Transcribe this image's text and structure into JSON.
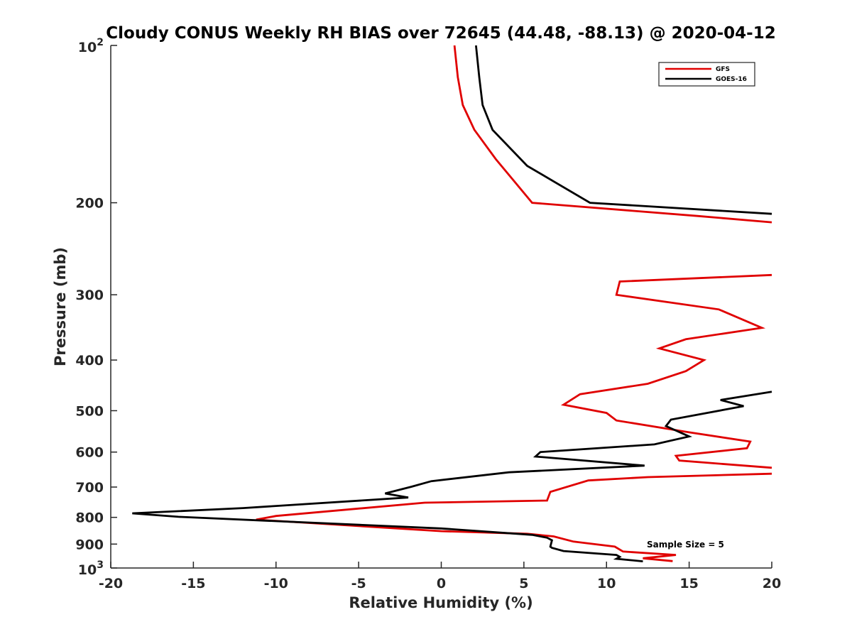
{
  "chart_data": {
    "type": "line",
    "title": "Cloudy CONUS Weekly RH BIAS over 72645 (44.48, -88.13) @ 2020-04-12",
    "xlabel": "Relative Humidity (%)",
    "ylabel": "Pressure (mb)",
    "xlim": [
      -20,
      20
    ],
    "ylim": [
      100,
      1000
    ],
    "yscale": "log",
    "y_reversed": true,
    "x_ticks": [
      "-20",
      "-15",
      "-10",
      "-5",
      "0",
      "5",
      "10",
      "15",
      "20"
    ],
    "y_ticks": [
      {
        "value": 100,
        "base": "10",
        "exp": "2"
      },
      {
        "value": 200,
        "label": "200"
      },
      {
        "value": 300,
        "label": "300"
      },
      {
        "value": 400,
        "label": "400"
      },
      {
        "value": 500,
        "label": "500"
      },
      {
        "value": 600,
        "label": "600"
      },
      {
        "value": 700,
        "label": "700"
      },
      {
        "value": 800,
        "label": "800"
      },
      {
        "value": 900,
        "label": "900"
      },
      {
        "value": 1000,
        "base": "10",
        "exp": "3"
      }
    ],
    "grid": false,
    "legend_position": "top-right",
    "annotation": "Sample Size = 5",
    "series": [
      {
        "name": "GFS",
        "color": "#e00000",
        "segments": [
          [
            [
              0.8,
              100
            ],
            [
              1.0,
              115
            ],
            [
              1.3,
              130
            ],
            [
              2.0,
              145
            ],
            [
              3.3,
              165
            ],
            [
              5.5,
              200
            ],
            [
              15.5,
              212
            ],
            [
              20,
              218
            ]
          ],
          [
            [
              20,
              275
            ],
            [
              10.8,
              283
            ],
            [
              10.6,
              300
            ],
            [
              16.8,
              320
            ],
            [
              19.4,
              347
            ],
            [
              14.8,
              365
            ],
            [
              13.2,
              380
            ],
            [
              15.9,
              400
            ],
            [
              14.8,
              420
            ],
            [
              12.5,
              444
            ],
            [
              8.4,
              465
            ],
            [
              7.4,
              487
            ],
            [
              10.0,
              505
            ],
            [
              10.6,
              522
            ],
            [
              15.0,
              550
            ],
            [
              18.7,
              573
            ],
            [
              18.5,
              590
            ],
            [
              14.2,
              610
            ],
            [
              14.4,
              623
            ],
            [
              20,
              643
            ]
          ],
          [
            [
              20,
              660
            ],
            [
              12.5,
              670
            ],
            [
              8.9,
              680
            ],
            [
              6.6,
              715
            ],
            [
              6.4,
              743
            ],
            [
              -1.0,
              750
            ],
            [
              -10.0,
              795
            ],
            [
              -11.2,
              808
            ],
            [
              0.0,
              850
            ],
            [
              5.2,
              860
            ],
            [
              6.8,
              870
            ],
            [
              8.0,
              890
            ],
            [
              10.5,
              910
            ],
            [
              11.0,
              930
            ],
            [
              14.2,
              944
            ],
            [
              12.2,
              958
            ],
            [
              14.0,
              970
            ]
          ]
        ]
      },
      {
        "name": "GOES-16",
        "color": "#000000",
        "segments": [
          [
            [
              2.1,
              100
            ],
            [
              2.3,
              115
            ],
            [
              2.5,
              130
            ],
            [
              3.1,
              145
            ],
            [
              5.2,
              170
            ],
            [
              9.0,
              200
            ],
            [
              20,
              210
            ]
          ],
          [
            [
              20,
              460
            ],
            [
              16.9,
              477
            ],
            [
              18.3,
              490
            ],
            [
              13.9,
              520
            ],
            [
              13.6,
              535
            ],
            [
              15.0,
              560
            ],
            [
              12.9,
              580
            ],
            [
              6.0,
              600
            ],
            [
              5.7,
              612
            ],
            [
              12.3,
              637
            ],
            [
              4.1,
              656
            ],
            [
              -0.6,
              682
            ],
            [
              -1.8,
              699
            ],
            [
              -3.4,
              720
            ],
            [
              -2.0,
              733
            ],
            [
              -12.0,
              768
            ],
            [
              -18.7,
              786
            ],
            [
              -15.9,
              798
            ],
            [
              0.0,
              840
            ],
            [
              5.5,
              864
            ],
            [
              6.4,
              875
            ],
            [
              6.7,
              885
            ],
            [
              6.6,
              910
            ],
            [
              6.7,
              915
            ],
            [
              7.4,
              928
            ],
            [
              10.6,
              944
            ],
            [
              10.8,
              952
            ],
            [
              10.6,
              960
            ],
            [
              12.2,
              971
            ]
          ]
        ]
      }
    ]
  }
}
